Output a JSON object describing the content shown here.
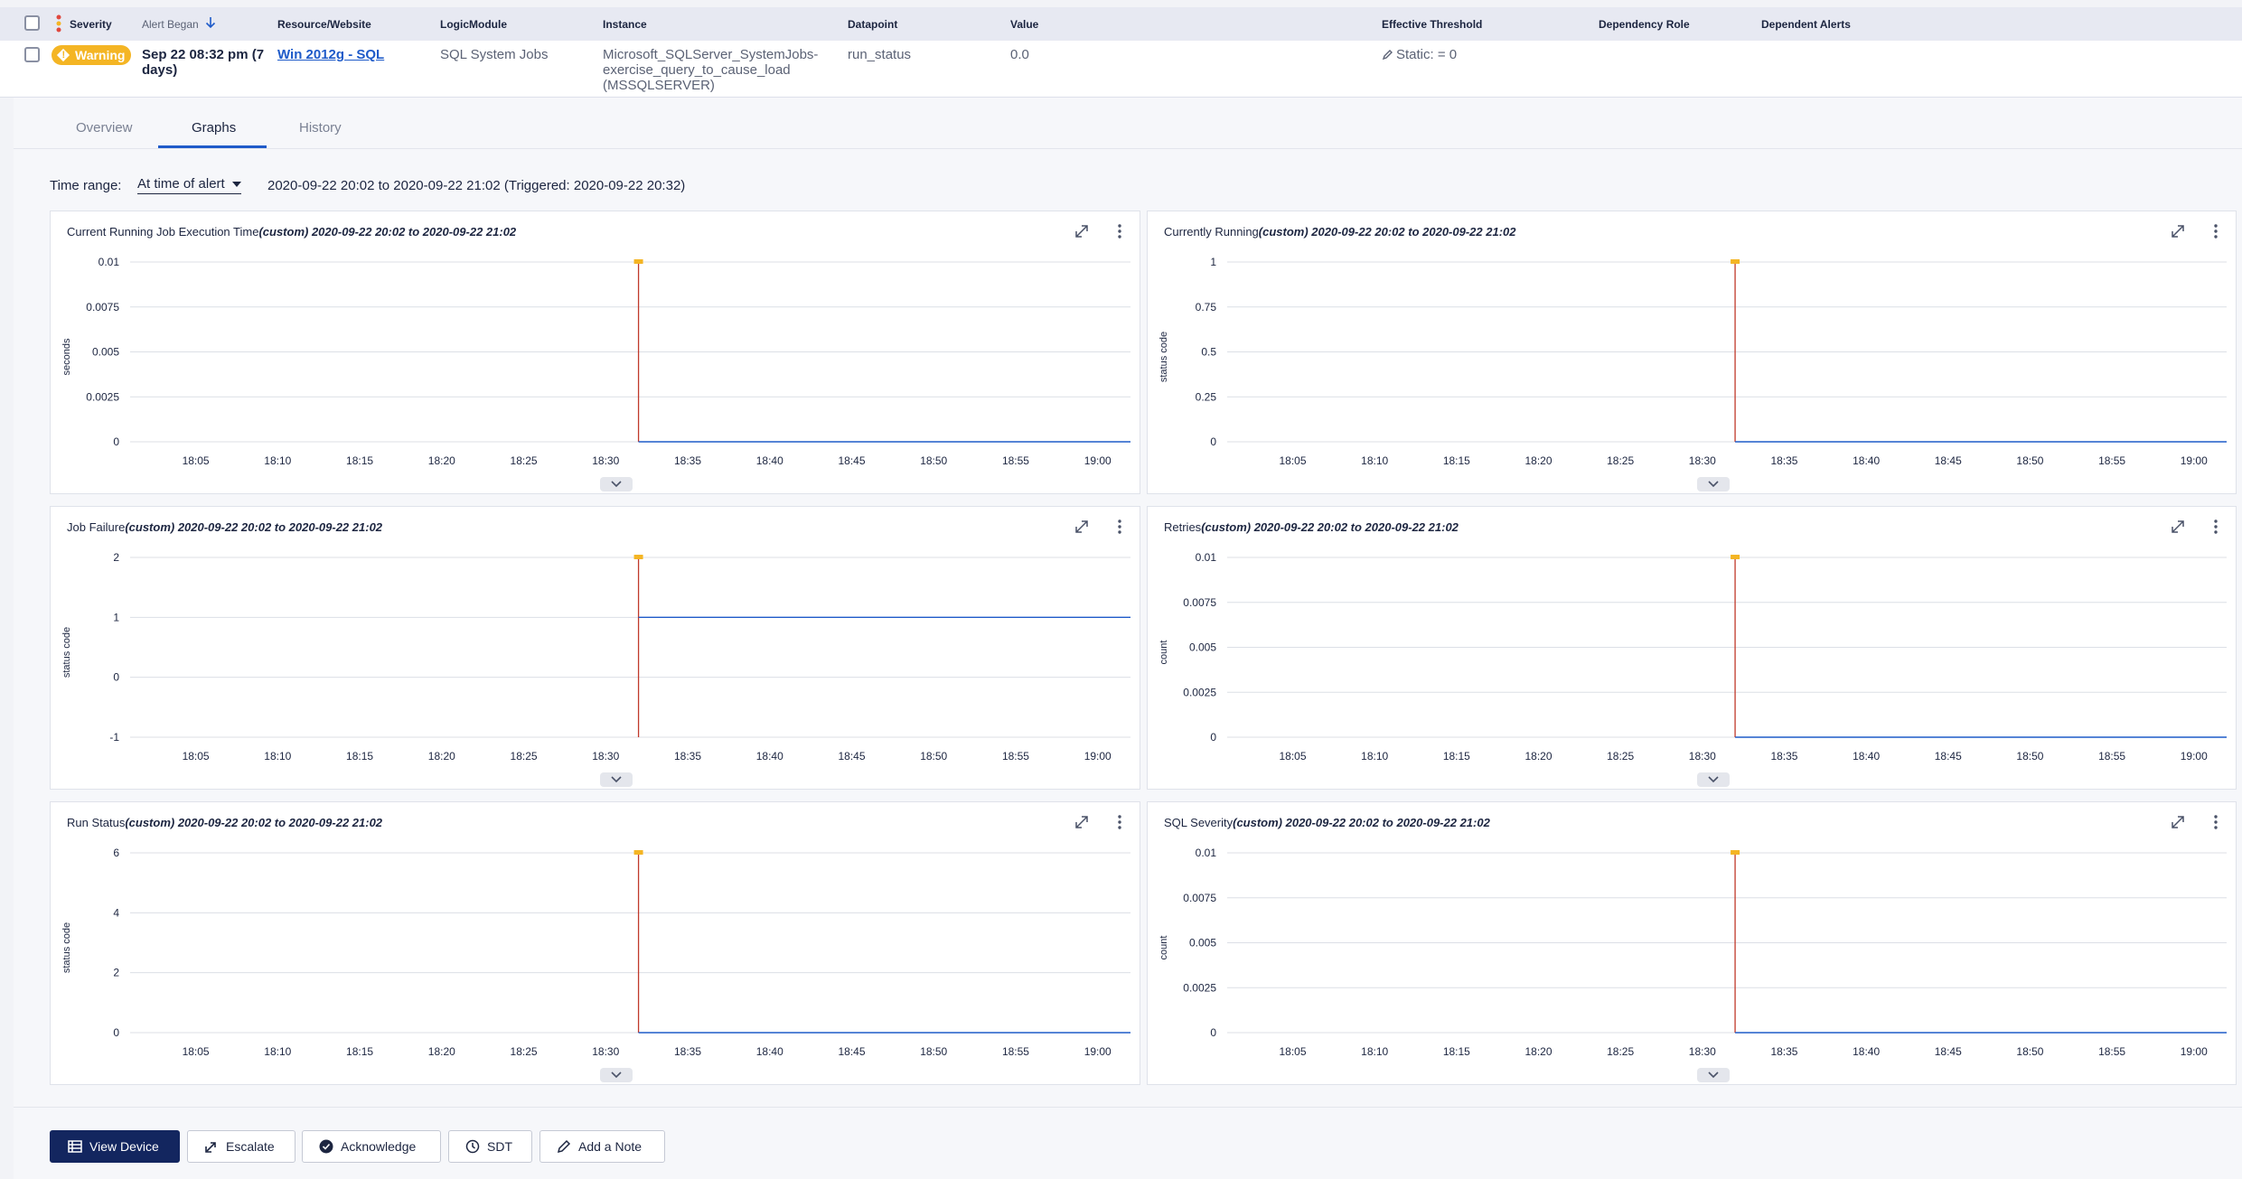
{
  "table": {
    "headers": {
      "severity": "Severity",
      "alert_began": "Alert Began",
      "resource": "Resource/Website",
      "logicmodule": "LogicModule",
      "instance": "Instance",
      "datapoint": "Datapoint",
      "value": "Value",
      "threshold": "Effective Threshold",
      "dependency_role": "Dependency Role",
      "dependent_alerts": "Dependent Alerts"
    },
    "row": {
      "severity": "Warning",
      "alert_began_line1": "Sep 22 08:32 pm (7",
      "alert_began_line2": "days)",
      "resource": "Win 2012g - SQL",
      "logicmodule": "SQL System Jobs",
      "instance_line1": "Microsoft_SQLServer_SystemJobs-",
      "instance_line2": "exercise_query_to_cause_load",
      "instance_line3": "(MSSQLSERVER)",
      "datapoint": "run_status",
      "value": "0.0",
      "threshold": "Static: = 0"
    }
  },
  "tabs": [
    "Overview",
    "Graphs",
    "History"
  ],
  "time_range": {
    "label": "Time range:",
    "selected": "At time of alert",
    "value": "2020-09-22 20:02 to 2020-09-22 21:02 (Triggered: 2020-09-22 20:32)"
  },
  "colors": {
    "series": "#1f5bc9",
    "alert_line": "#c0392b",
    "alert_marker": "#f4b524",
    "primary_button": "#13265f"
  },
  "chart_data": [
    {
      "type": "line",
      "title": "Current Running Job Execution Time",
      "title_suffix": "(custom) 2020-09-22 20:02 to 2020-09-22 21:02",
      "ylabel": "seconds",
      "ylim": [
        0,
        0.01
      ],
      "yticks": [
        "0.01",
        "0.0075",
        "0.005",
        "0.0025",
        "0"
      ],
      "xticks": [
        "18:05",
        "18:10",
        "18:15",
        "18:20",
        "18:25",
        "18:30",
        "18:35",
        "18:40",
        "18:45",
        "18:50",
        "18:55",
        "19:00"
      ],
      "alert_time": "18:32",
      "series": [
        {
          "x": [
            "18:32",
            "19:02"
          ],
          "values": [
            0,
            0
          ]
        }
      ]
    },
    {
      "type": "line",
      "title": "Currently Running",
      "title_suffix": "(custom) 2020-09-22 20:02 to 2020-09-22 21:02",
      "ylabel": "status code",
      "ylim": [
        0,
        1
      ],
      "yticks": [
        "1",
        "0.75",
        "0.5",
        "0.25",
        "0"
      ],
      "xticks": [
        "18:05",
        "18:10",
        "18:15",
        "18:20",
        "18:25",
        "18:30",
        "18:35",
        "18:40",
        "18:45",
        "18:50",
        "18:55",
        "19:00"
      ],
      "alert_time": "18:32",
      "series": [
        {
          "x": [
            "18:32",
            "19:02"
          ],
          "values": [
            0,
            0
          ]
        }
      ]
    },
    {
      "type": "line",
      "title": "Job Failure",
      "title_suffix": "(custom) 2020-09-22 20:02 to 2020-09-22 21:02",
      "ylabel": "status code",
      "ylim": [
        -1,
        2
      ],
      "yticks": [
        "2",
        "1",
        "0",
        "-1"
      ],
      "xticks": [
        "18:05",
        "18:10",
        "18:15",
        "18:20",
        "18:25",
        "18:30",
        "18:35",
        "18:40",
        "18:45",
        "18:50",
        "18:55",
        "19:00"
      ],
      "alert_time": "18:32",
      "series": [
        {
          "x": [
            "18:32",
            "19:02"
          ],
          "values": [
            1,
            1
          ]
        }
      ]
    },
    {
      "type": "line",
      "title": "Retries",
      "title_suffix": "(custom) 2020-09-22 20:02 to 2020-09-22 21:02",
      "ylabel": "count",
      "ylim": [
        0,
        0.01
      ],
      "yticks": [
        "0.01",
        "0.0075",
        "0.005",
        "0.0025",
        "0"
      ],
      "xticks": [
        "18:05",
        "18:10",
        "18:15",
        "18:20",
        "18:25",
        "18:30",
        "18:35",
        "18:40",
        "18:45",
        "18:50",
        "18:55",
        "19:00"
      ],
      "alert_time": "18:32",
      "series": [
        {
          "x": [
            "18:32",
            "19:02"
          ],
          "values": [
            0,
            0
          ]
        }
      ]
    },
    {
      "type": "line",
      "title": "Run Status",
      "title_suffix": "(custom) 2020-09-22 20:02 to 2020-09-22 21:02",
      "ylabel": "status code",
      "ylim": [
        -1,
        6
      ],
      "yticks": [
        "6",
        "4",
        "2",
        "0"
      ],
      "xticks": [
        "18:05",
        "18:10",
        "18:15",
        "18:20",
        "18:25",
        "18:30",
        "18:35",
        "18:40",
        "18:45",
        "18:50",
        "18:55",
        "19:00"
      ],
      "alert_time": "18:32",
      "series": [
        {
          "x": [
            "18:32",
            "19:02"
          ],
          "values": [
            0,
            0
          ]
        }
      ]
    },
    {
      "type": "line",
      "title": "SQL Severity",
      "title_suffix": "(custom) 2020-09-22 20:02 to 2020-09-22 21:02",
      "ylabel": "count",
      "ylim": [
        0,
        0.01
      ],
      "yticks": [
        "0.01",
        "0.0075",
        "0.005",
        "0.0025",
        "0"
      ],
      "xticks": [
        "18:05",
        "18:10",
        "18:15",
        "18:20",
        "18:25",
        "18:30",
        "18:35",
        "18:40",
        "18:45",
        "18:50",
        "18:55",
        "19:00"
      ],
      "alert_time": "18:32",
      "series": [
        {
          "x": [
            "18:32",
            "19:02"
          ],
          "values": [
            0,
            0
          ]
        }
      ]
    }
  ],
  "buttons": {
    "view_device": "View Device",
    "escalate": "Escalate",
    "acknowledge": "Acknowledge",
    "sdt": "SDT",
    "add_note": "Add a Note"
  }
}
